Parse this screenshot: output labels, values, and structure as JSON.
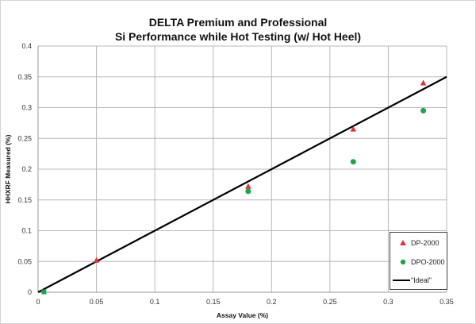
{
  "chart_data": {
    "type": "scatter",
    "title": "DELTA Premium and Professional",
    "subtitle": "Si Performance while Hot Testing (w/ Hot Heel)",
    "xlabel": "Assay Value (%)",
    "ylabel": "HHXRF Measured (%)",
    "xlim": [
      0,
      0.35
    ],
    "ylim": [
      0,
      0.4
    ],
    "x_ticks": [
      "0",
      "0.05",
      "0.1",
      "0.15",
      "0.2",
      "0.25",
      "0.3",
      "0.35"
    ],
    "y_ticks": [
      "0",
      "0.05",
      "0.1",
      "0.15",
      "0.2",
      "0.25",
      "0.3",
      "0.35",
      "0.4"
    ],
    "grid": true,
    "legend_position": "lower right",
    "series": [
      {
        "name": "DP-2000",
        "marker": "triangle",
        "color": "#d9353a",
        "x": [
          0.05,
          0.18,
          0.27,
          0.33
        ],
        "y": [
          0.052,
          0.172,
          0.265,
          0.34
        ]
      },
      {
        "name": "DPO-2000",
        "marker": "circle",
        "color": "#1fa34a",
        "x": [
          0.005,
          0.18,
          0.27,
          0.33
        ],
        "y": [
          0.0,
          0.164,
          0.212,
          0.295
        ]
      },
      {
        "name": "\"Ideal\"",
        "marker": "line",
        "color": "#000000",
        "x": [
          0,
          0.35
        ],
        "y": [
          0,
          0.35
        ]
      }
    ]
  },
  "legend": {
    "items": [
      {
        "label": "DP-2000"
      },
      {
        "label": "DPO-2000"
      },
      {
        "label": "\"Ideal\""
      }
    ]
  }
}
